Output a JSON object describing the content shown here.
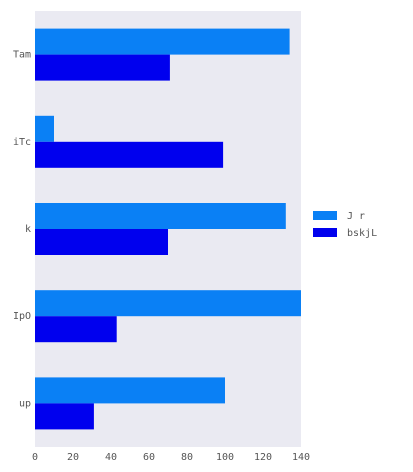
{
  "chart_data": {
    "type": "bar",
    "orientation": "horizontal",
    "categories": [
      "Tam",
      "iTc",
      "k",
      "IpO",
      "up"
    ],
    "series": [
      {
        "name": "J r",
        "color": "#0a80f5",
        "values": [
          134,
          10,
          132,
          140,
          100
        ]
      },
      {
        "name": "bskjL",
        "color": "#0000ee",
        "values": [
          71,
          99,
          70,
          43,
          31
        ]
      }
    ],
    "xlim": [
      0,
      140
    ],
    "xticks": [
      0,
      20,
      40,
      60,
      80,
      100,
      120,
      140
    ],
    "grid": false,
    "legend_position": "right",
    "background": "#eaeaf2"
  }
}
